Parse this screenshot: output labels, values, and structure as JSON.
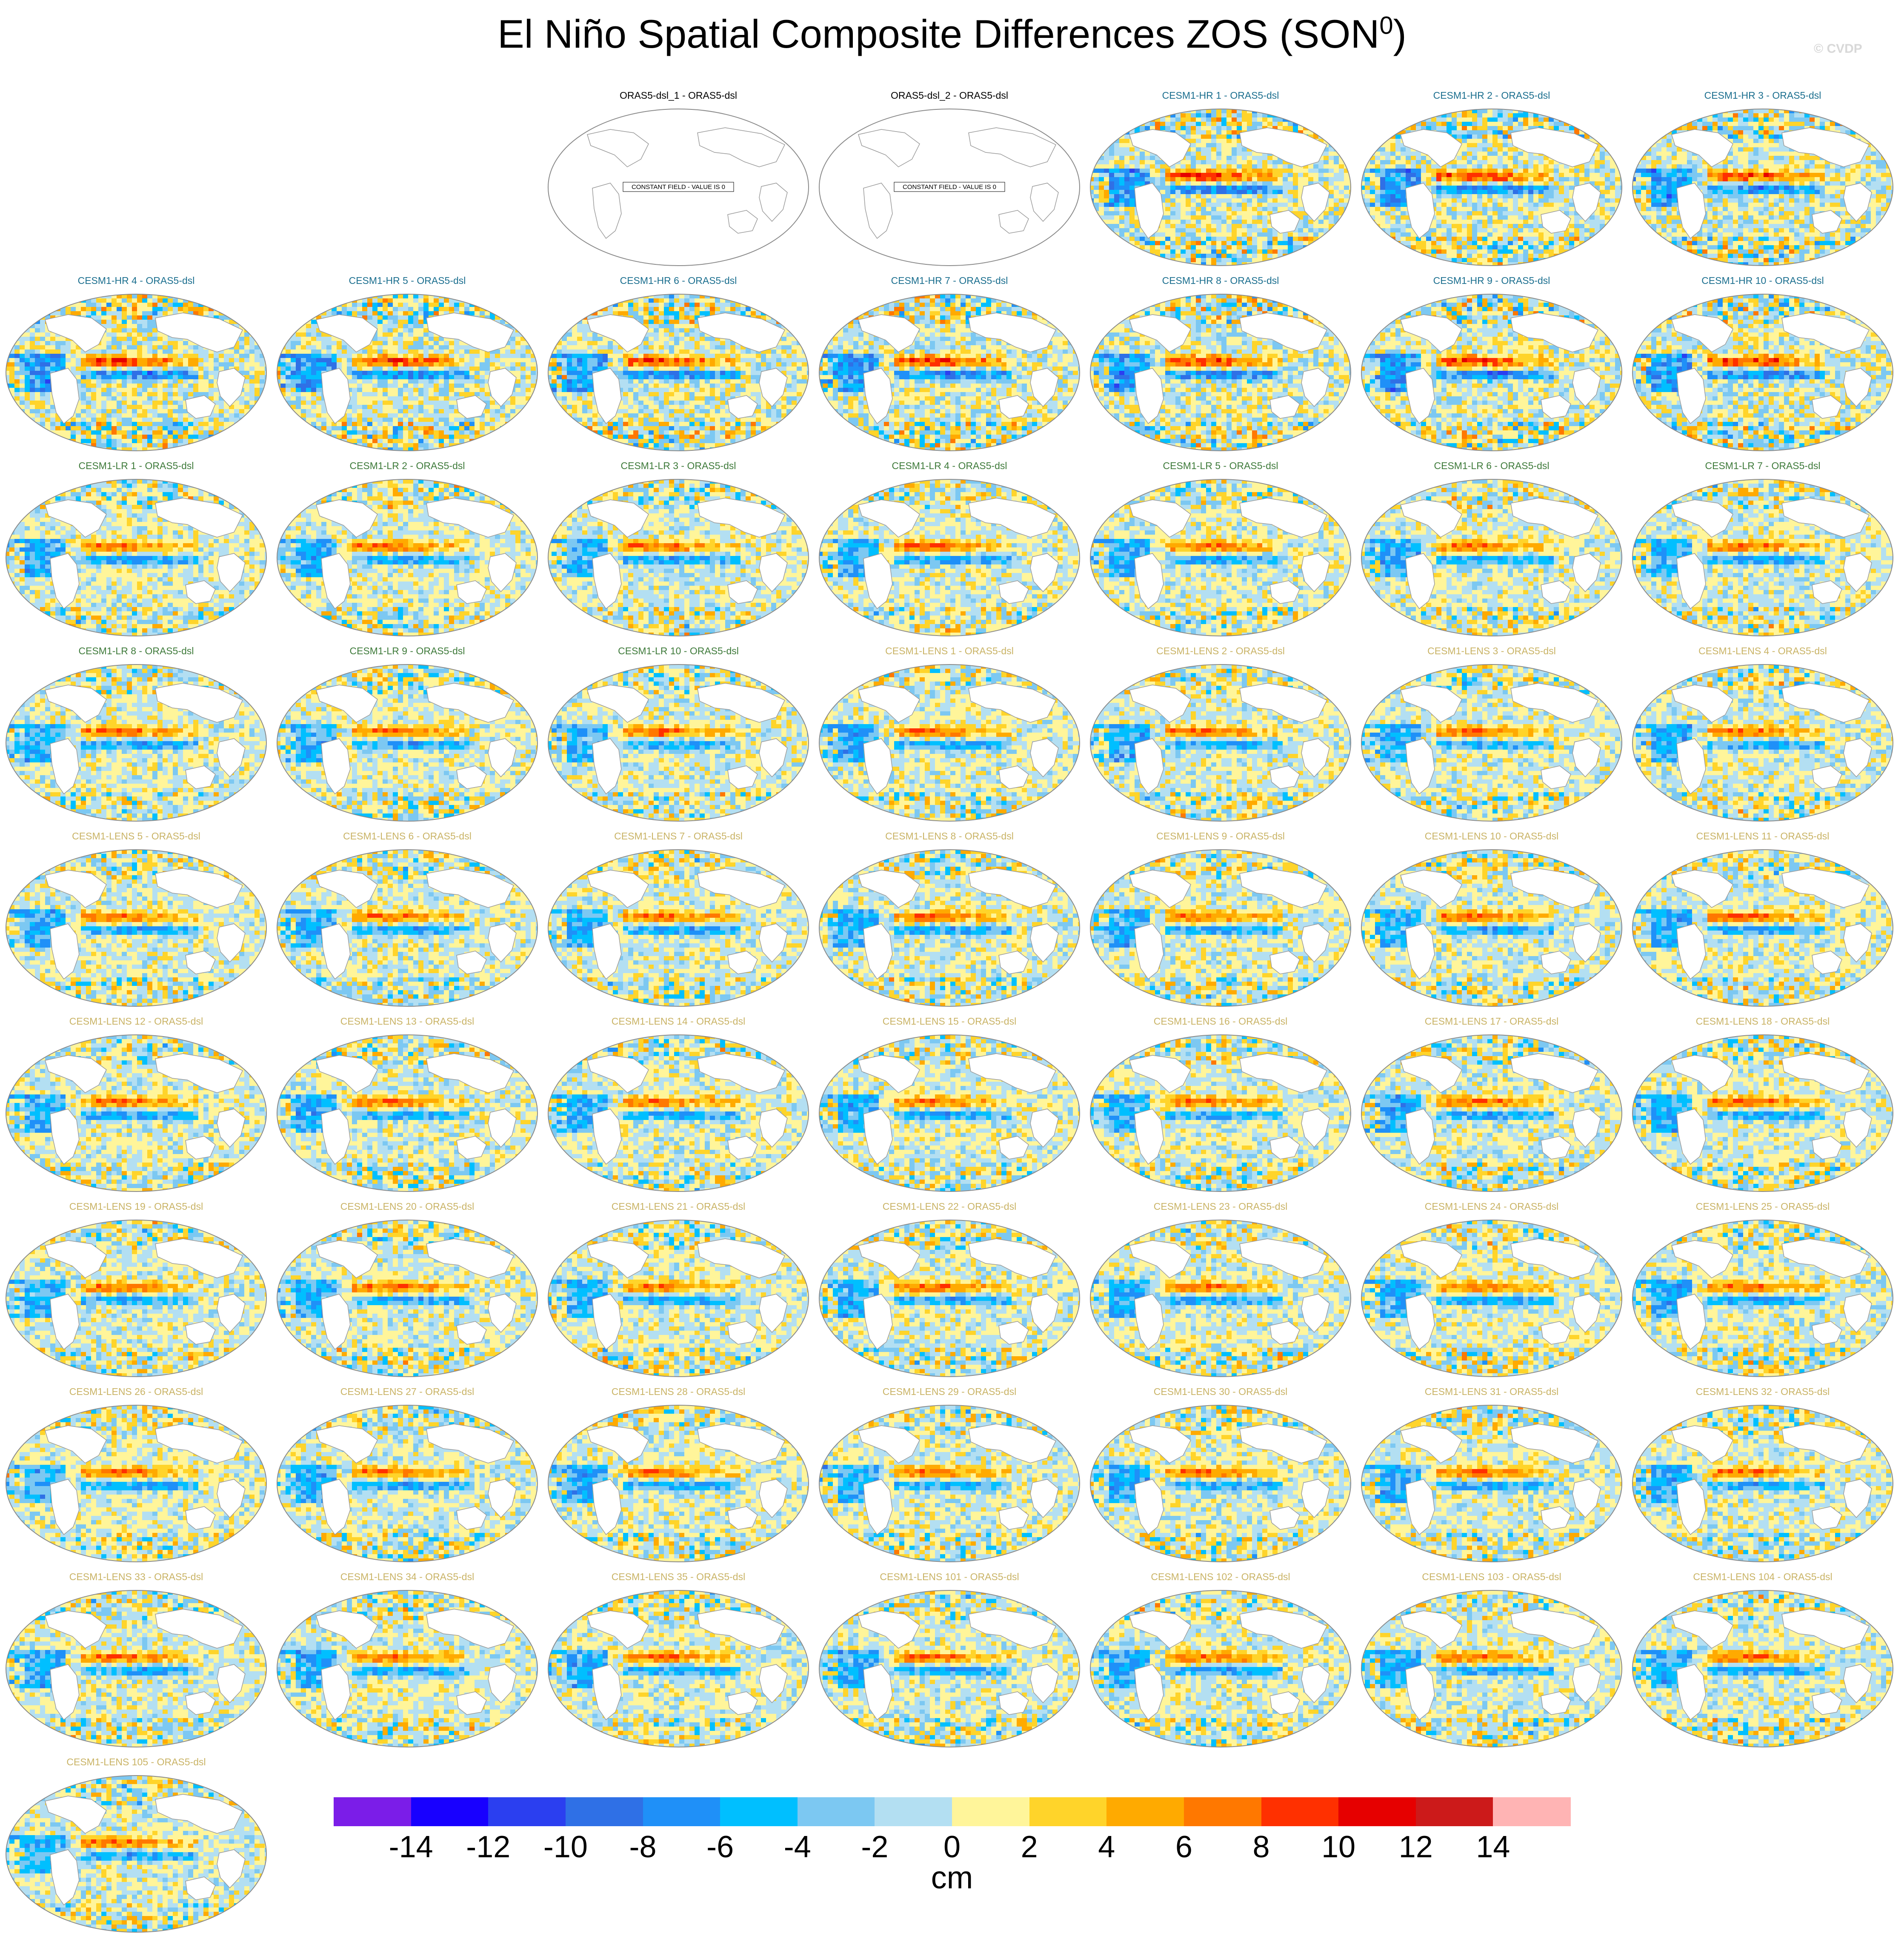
{
  "title": "El Niño Spatial Composite Differences ZOS (SON",
  "title_sup": "0",
  "title_close": ")",
  "watermark": "© CVDP",
  "colors": {
    "hr": "#1a6e8e",
    "lr": "#3e7a3a",
    "lens": "#c9b365",
    "obs": "#000000"
  },
  "chart_data": {
    "type": "heatmap",
    "layout": "small-multiples grid, 7 columns x 9 rows, map panels",
    "projection": "Robinson-like global ellipse",
    "panels": [
      {
        "title": "ORAS5-dsl_1 - ORAS5-dsl",
        "group": "obs",
        "constant_field": true,
        "note": "CONSTANT FIELD - VALUE IS 0"
      },
      {
        "title": "ORAS5-dsl_2 - ORAS5-dsl",
        "group": "obs",
        "constant_field": true,
        "note": "CONSTANT FIELD - VALUE IS 0"
      },
      {
        "title": "CESM1-HR 1 - ORAS5-dsl",
        "group": "hr"
      },
      {
        "title": "CESM1-HR 2 - ORAS5-dsl",
        "group": "hr"
      },
      {
        "title": "CESM1-HR 3 - ORAS5-dsl",
        "group": "hr"
      },
      {
        "title": "CESM1-HR 4 - ORAS5-dsl",
        "group": "hr"
      },
      {
        "title": "CESM1-HR 5 - ORAS5-dsl",
        "group": "hr"
      },
      {
        "title": "CESM1-HR 6 - ORAS5-dsl",
        "group": "hr"
      },
      {
        "title": "CESM1-HR 7 - ORAS5-dsl",
        "group": "hr"
      },
      {
        "title": "CESM1-HR 8 - ORAS5-dsl",
        "group": "hr"
      },
      {
        "title": "CESM1-HR 9 - ORAS5-dsl",
        "group": "hr"
      },
      {
        "title": "CESM1-HR 10 - ORAS5-dsl",
        "group": "hr"
      },
      {
        "title": "CESM1-LR 1 - ORAS5-dsl",
        "group": "lr"
      },
      {
        "title": "CESM1-LR 2 - ORAS5-dsl",
        "group": "lr"
      },
      {
        "title": "CESM1-LR 3 - ORAS5-dsl",
        "group": "lr"
      },
      {
        "title": "CESM1-LR 4 - ORAS5-dsl",
        "group": "lr"
      },
      {
        "title": "CESM1-LR 5 - ORAS5-dsl",
        "group": "lr"
      },
      {
        "title": "CESM1-LR 6 - ORAS5-dsl",
        "group": "lr"
      },
      {
        "title": "CESM1-LR 7 - ORAS5-dsl",
        "group": "lr"
      },
      {
        "title": "CESM1-LR 8 - ORAS5-dsl",
        "group": "lr"
      },
      {
        "title": "CESM1-LR 9 - ORAS5-dsl",
        "group": "lr"
      },
      {
        "title": "CESM1-LR 10 - ORAS5-dsl",
        "group": "lr"
      },
      {
        "title": "CESM1-LENS 1 - ORAS5-dsl",
        "group": "lens"
      },
      {
        "title": "CESM1-LENS 2 - ORAS5-dsl",
        "group": "lens"
      },
      {
        "title": "CESM1-LENS 3 - ORAS5-dsl",
        "group": "lens"
      },
      {
        "title": "CESM1-LENS 4 - ORAS5-dsl",
        "group": "lens"
      },
      {
        "title": "CESM1-LENS 5 - ORAS5-dsl",
        "group": "lens"
      },
      {
        "title": "CESM1-LENS 6 - ORAS5-dsl",
        "group": "lens"
      },
      {
        "title": "CESM1-LENS 7 - ORAS5-dsl",
        "group": "lens"
      },
      {
        "title": "CESM1-LENS 8 - ORAS5-dsl",
        "group": "lens"
      },
      {
        "title": "CESM1-LENS 9 - ORAS5-dsl",
        "group": "lens"
      },
      {
        "title": "CESM1-LENS 10 - ORAS5-dsl",
        "group": "lens"
      },
      {
        "title": "CESM1-LENS 11 - ORAS5-dsl",
        "group": "lens"
      },
      {
        "title": "CESM1-LENS 12 - ORAS5-dsl",
        "group": "lens"
      },
      {
        "title": "CESM1-LENS 13 - ORAS5-dsl",
        "group": "lens"
      },
      {
        "title": "CESM1-LENS 14 - ORAS5-dsl",
        "group": "lens"
      },
      {
        "title": "CESM1-LENS 15 - ORAS5-dsl",
        "group": "lens"
      },
      {
        "title": "CESM1-LENS 16 - ORAS5-dsl",
        "group": "lens"
      },
      {
        "title": "CESM1-LENS 17 - ORAS5-dsl",
        "group": "lens"
      },
      {
        "title": "CESM1-LENS 18 - ORAS5-dsl",
        "group": "lens"
      },
      {
        "title": "CESM1-LENS 19 - ORAS5-dsl",
        "group": "lens"
      },
      {
        "title": "CESM1-LENS 20 - ORAS5-dsl",
        "group": "lens"
      },
      {
        "title": "CESM1-LENS 21 - ORAS5-dsl",
        "group": "lens"
      },
      {
        "title": "CESM1-LENS 22 - ORAS5-dsl",
        "group": "lens"
      },
      {
        "title": "CESM1-LENS 23 - ORAS5-dsl",
        "group": "lens"
      },
      {
        "title": "CESM1-LENS 24 - ORAS5-dsl",
        "group": "lens"
      },
      {
        "title": "CESM1-LENS 25 - ORAS5-dsl",
        "group": "lens"
      },
      {
        "title": "CESM1-LENS 26 - ORAS5-dsl",
        "group": "lens"
      },
      {
        "title": "CESM1-LENS 27 - ORAS5-dsl",
        "group": "lens"
      },
      {
        "title": "CESM1-LENS 28 - ORAS5-dsl",
        "group": "lens"
      },
      {
        "title": "CESM1-LENS 29 - ORAS5-dsl",
        "group": "lens"
      },
      {
        "title": "CESM1-LENS 30 - ORAS5-dsl",
        "group": "lens"
      },
      {
        "title": "CESM1-LENS 31 - ORAS5-dsl",
        "group": "lens"
      },
      {
        "title": "CESM1-LENS 32 - ORAS5-dsl",
        "group": "lens"
      },
      {
        "title": "CESM1-LENS 33 - ORAS5-dsl",
        "group": "lens"
      },
      {
        "title": "CESM1-LENS 34 - ORAS5-dsl",
        "group": "lens"
      },
      {
        "title": "CESM1-LENS 35 - ORAS5-dsl",
        "group": "lens"
      },
      {
        "title": "CESM1-LENS 101 - ORAS5-dsl",
        "group": "lens"
      },
      {
        "title": "CESM1-LENS 102 - ORAS5-dsl",
        "group": "lens"
      },
      {
        "title": "CESM1-LENS 103 - ORAS5-dsl",
        "group": "lens"
      },
      {
        "title": "CESM1-LENS 104 - ORAS5-dsl",
        "group": "lens"
      },
      {
        "title": "CESM1-LENS 105 - ORAS5-dsl",
        "group": "lens"
      }
    ],
    "colorbar": {
      "unit": "cm",
      "ticks": [
        "-14",
        "-12",
        "-10",
        "-8",
        "-6",
        "-4",
        "-2",
        "0",
        "2",
        "4",
        "6",
        "8",
        "10",
        "12",
        "14"
      ],
      "colors": [
        "#7b1de8",
        "#1800ff",
        "#2b3ff0",
        "#2f70e6",
        "#1f90f8",
        "#00bfff",
        "#7cc8f2",
        "#b3dff2",
        "#fff59a",
        "#ffd42a",
        "#ffaa00",
        "#ff7800",
        "#ff3000",
        "#e60000",
        "#cc1a1a",
        "#ffb4b4"
      ]
    }
  }
}
